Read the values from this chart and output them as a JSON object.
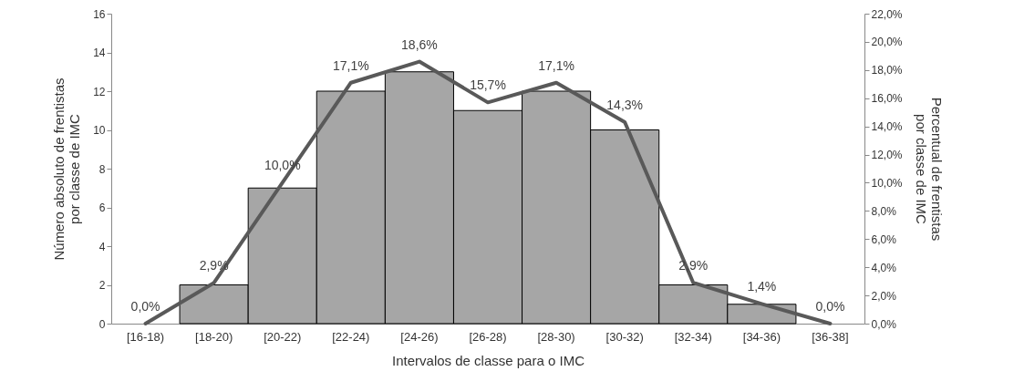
{
  "chart_data": {
    "type": "bar",
    "categories": [
      "[16-18)",
      "[18-20)",
      "[20-22)",
      "[22-24)",
      "[24-26)",
      "[26-28)",
      "[28-30)",
      "[30-32)",
      "[32-34)",
      "[34-36)",
      "[36-38]"
    ],
    "series": [
      {
        "color": "#a6a6a6",
        "values": [
          0,
          2,
          7,
          12,
          13,
          11,
          12,
          10,
          2,
          1,
          0
        ]
      },
      {
        "type": "line",
        "axis": "y2",
        "color": "#595959",
        "values": [
          0,
          2.9,
          10,
          17.1,
          18.6,
          15.7,
          17.1,
          14.3,
          2.9,
          1.4,
          0
        ],
        "value_labels": [
          "0,0%",
          "2,9%",
          "10,0%",
          "17,1%",
          "18,6%",
          "15,7%",
          "17,1%",
          "14,3%",
          "2,9%",
          "1,4%",
          "0,0%"
        ]
      }
    ],
    "ylim": [
      0,
      16
    ],
    "yticks": [
      0,
      2,
      4,
      6,
      8,
      10,
      12,
      14,
      16
    ],
    "y2lim": [
      0,
      22
    ],
    "y2ticks": [
      {
        "value": 0,
        "label": "0,0%"
      },
      {
        "value": 2,
        "label": "2,0%"
      },
      {
        "value": 4,
        "label": "4,0%"
      },
      {
        "value": 6,
        "label": "6,0%"
      },
      {
        "value": 8,
        "label": "8,0%"
      },
      {
        "value": 10,
        "label": "10,0%"
      },
      {
        "value": 12,
        "label": "12,0%"
      },
      {
        "value": 14,
        "label": "14,0%"
      },
      {
        "value": 16,
        "label": "16,0%"
      },
      {
        "value": 18,
        "label": "18,0%"
      },
      {
        "value": 20,
        "label": "20,0%"
      },
      {
        "value": 22,
        "label": "22,0%"
      }
    ],
    "xlabel": "Intervalos de classe para o IMC",
    "ylabel": "Número  absoluto de frentistas\npor classe de IMC",
    "y2label": "Percentual de frentistas\npor classe de IMC"
  }
}
